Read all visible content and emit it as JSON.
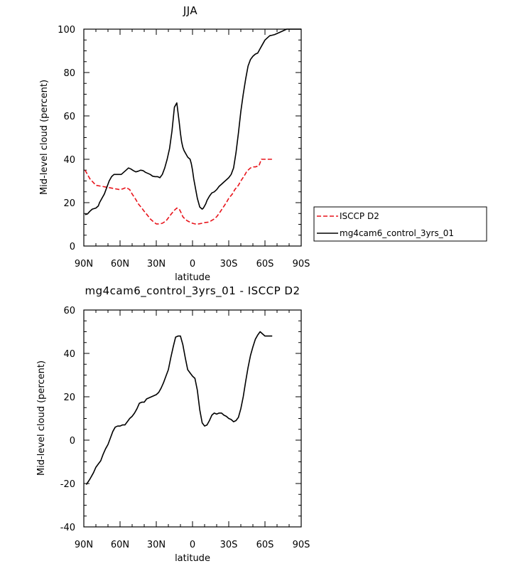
{
  "chart_data": [
    {
      "type": "line",
      "title": "JJA",
      "xlabel": "latitude",
      "ylabel": "Mid-level cloud (percent)",
      "xlim": [
        90,
        -90
      ],
      "ylim": [
        0,
        100
      ],
      "xticks": [
        90,
        60,
        30,
        0,
        -30,
        -60,
        -90
      ],
      "xtick_labels": [
        "90N",
        "60N",
        "30N",
        "0",
        "30S",
        "60S",
        "90S"
      ],
      "yticks": [
        0,
        20,
        40,
        60,
        80,
        100
      ],
      "ytick_labels": [
        "0",
        "20",
        "40",
        "60",
        "80",
        "100"
      ],
      "grid": false,
      "legend_position": "right",
      "series": [
        {
          "name": "ISCCP D2",
          "color": "#e8141b",
          "dash": "dashed",
          "x": [
            89,
            85,
            80,
            75,
            70,
            65,
            60,
            57,
            55,
            52,
            50,
            47,
            45,
            42,
            40,
            37,
            35,
            32,
            30,
            27,
            25,
            22,
            20,
            18,
            15,
            13,
            11,
            10,
            8,
            6,
            4,
            2,
            0,
            -2,
            -5,
            -8,
            -10,
            -13,
            -15,
            -18,
            -20,
            -22,
            -25,
            -28,
            -30,
            -33,
            -35,
            -38,
            -40,
            -43,
            -45,
            -48,
            -50,
            -52,
            -55,
            -57,
            -60,
            -62,
            -64,
            -65,
            -66
          ],
          "y": [
            35,
            31,
            28,
            27.5,
            27,
            26.5,
            26,
            26.5,
            27,
            26,
            24,
            21.5,
            19.5,
            17.5,
            16,
            14,
            12.5,
            11,
            10.2,
            10.2,
            10.5,
            11.5,
            13,
            14.5,
            16.5,
            17.5,
            17,
            16,
            13.5,
            12.3,
            11.5,
            11,
            10.5,
            10.2,
            10.2,
            10.5,
            10.8,
            11,
            11.5,
            12.5,
            13.5,
            15,
            17.5,
            20,
            22,
            24,
            26,
            28,
            30,
            32.5,
            34.5,
            36,
            36.5,
            36.5,
            37,
            40,
            40,
            40,
            40,
            40,
            40
          ]
        },
        {
          "name": "mg4cam6_control_3yrs_01",
          "color": "#000000",
          "dash": "solid",
          "x": [
            89,
            87,
            85,
            83,
            80,
            78,
            77,
            75,
            73,
            71,
            69,
            67,
            65,
            63,
            61,
            59,
            57,
            55,
            53,
            51,
            49,
            47,
            45,
            43,
            41,
            39,
            37,
            35,
            33,
            31,
            29,
            27,
            25,
            23,
            21,
            19,
            17,
            15,
            13,
            11,
            10,
            9,
            8,
            7,
            6,
            5,
            4,
            3,
            2,
            1,
            0,
            -1,
            -2,
            -3,
            -4,
            -5,
            -6,
            -7,
            -8,
            -9,
            -10,
            -11,
            -12,
            -14,
            -16,
            -18,
            -20,
            -22,
            -24,
            -26,
            -28,
            -30,
            -32,
            -34,
            -36,
            -38,
            -40,
            -42,
            -44,
            -46,
            -48,
            -50,
            -52,
            -54,
            -56,
            -58,
            -60,
            -62,
            -64,
            -66,
            -68,
            -70,
            -72,
            -74,
            -76,
            -78,
            -80,
            -82,
            -84,
            -86,
            -88,
            -90
          ],
          "y": [
            14.5,
            14.8,
            16,
            17,
            17.5,
            18.5,
            20,
            22,
            24,
            27,
            30,
            32,
            33,
            33,
            33,
            33,
            34,
            35,
            36,
            35.5,
            34.8,
            34.2,
            34.5,
            35,
            34.8,
            34,
            33.5,
            33,
            32.2,
            32.0,
            32.0,
            31.5,
            33,
            36,
            40,
            45,
            53,
            64,
            66,
            57,
            52,
            48,
            45.5,
            44,
            43,
            42,
            41,
            40.5,
            40,
            38,
            35,
            31,
            28,
            25,
            22,
            20,
            18,
            17.5,
            17,
            17.5,
            18.5,
            19.5,
            21,
            23,
            24.5,
            25,
            26,
            27.5,
            28.5,
            29.5,
            30.5,
            31.5,
            33,
            36,
            43,
            52,
            62,
            70,
            77,
            83,
            86,
            87.5,
            88.5,
            89,
            91,
            93,
            95,
            96,
            97,
            97.2,
            97.5,
            98,
            98.5,
            99,
            99.5,
            100,
            100,
            100,
            100,
            100,
            100,
            100
          ]
        }
      ]
    },
    {
      "type": "line",
      "title": "mg4cam6_control_3yrs_01 - ISCCP D2",
      "xlabel": "latitude",
      "ylabel": "Mid-level cloud (percent)",
      "xlim": [
        90,
        -90
      ],
      "ylim": [
        -40,
        60
      ],
      "xticks": [
        90,
        60,
        30,
        0,
        -30,
        -60,
        -90
      ],
      "xtick_labels": [
        "90N",
        "60N",
        "30N",
        "0",
        "30S",
        "60S",
        "90S"
      ],
      "yticks": [
        -40,
        -20,
        0,
        20,
        40,
        60
      ],
      "ytick_labels": [
        "-40",
        "-20",
        "0",
        "20",
        "40",
        "60"
      ],
      "grid": false,
      "series": [
        {
          "color": "#000000",
          "dash": "solid",
          "x": [
            88,
            85,
            82,
            80,
            78,
            76,
            74,
            72,
            70,
            68,
            66,
            64,
            62,
            60,
            58,
            56,
            54,
            52,
            50,
            48,
            46,
            44,
            42,
            40,
            38,
            36,
            34,
            32,
            30,
            28,
            26,
            24,
            22,
            20,
            18,
            16,
            14,
            12,
            10,
            8,
            6,
            4,
            2,
            0,
            -2,
            -4,
            -6,
            -8,
            -10,
            -12,
            -14,
            -16,
            -18,
            -20,
            -22,
            -24,
            -26,
            -28,
            -30,
            -32,
            -34,
            -36,
            -38,
            -40,
            -42,
            -44,
            -46,
            -48,
            -50,
            -52,
            -54,
            -56,
            -58,
            -60,
            -62,
            -64,
            -66
          ],
          "y": [
            -20.5,
            -18,
            -15,
            -12.5,
            -11,
            -9.5,
            -6.5,
            -4,
            -2,
            1,
            4,
            6,
            6.5,
            6.5,
            7,
            7,
            8.5,
            10,
            11,
            12.5,
            14.5,
            17,
            17.5,
            17.5,
            19,
            19.5,
            20,
            20.5,
            21,
            22,
            24,
            26.5,
            29.5,
            32.5,
            38,
            43,
            47.5,
            48,
            48,
            44,
            38,
            32.5,
            31,
            29.5,
            28.5,
            23,
            14,
            8,
            6.5,
            7,
            9,
            11.5,
            12.5,
            12,
            12.5,
            12.5,
            11.5,
            11,
            10,
            9.5,
            8.5,
            9,
            10.5,
            14.5,
            20,
            27,
            33.5,
            39,
            43,
            46.5,
            48.5,
            50,
            49,
            48,
            48,
            48,
            48
          ]
        }
      ]
    }
  ]
}
